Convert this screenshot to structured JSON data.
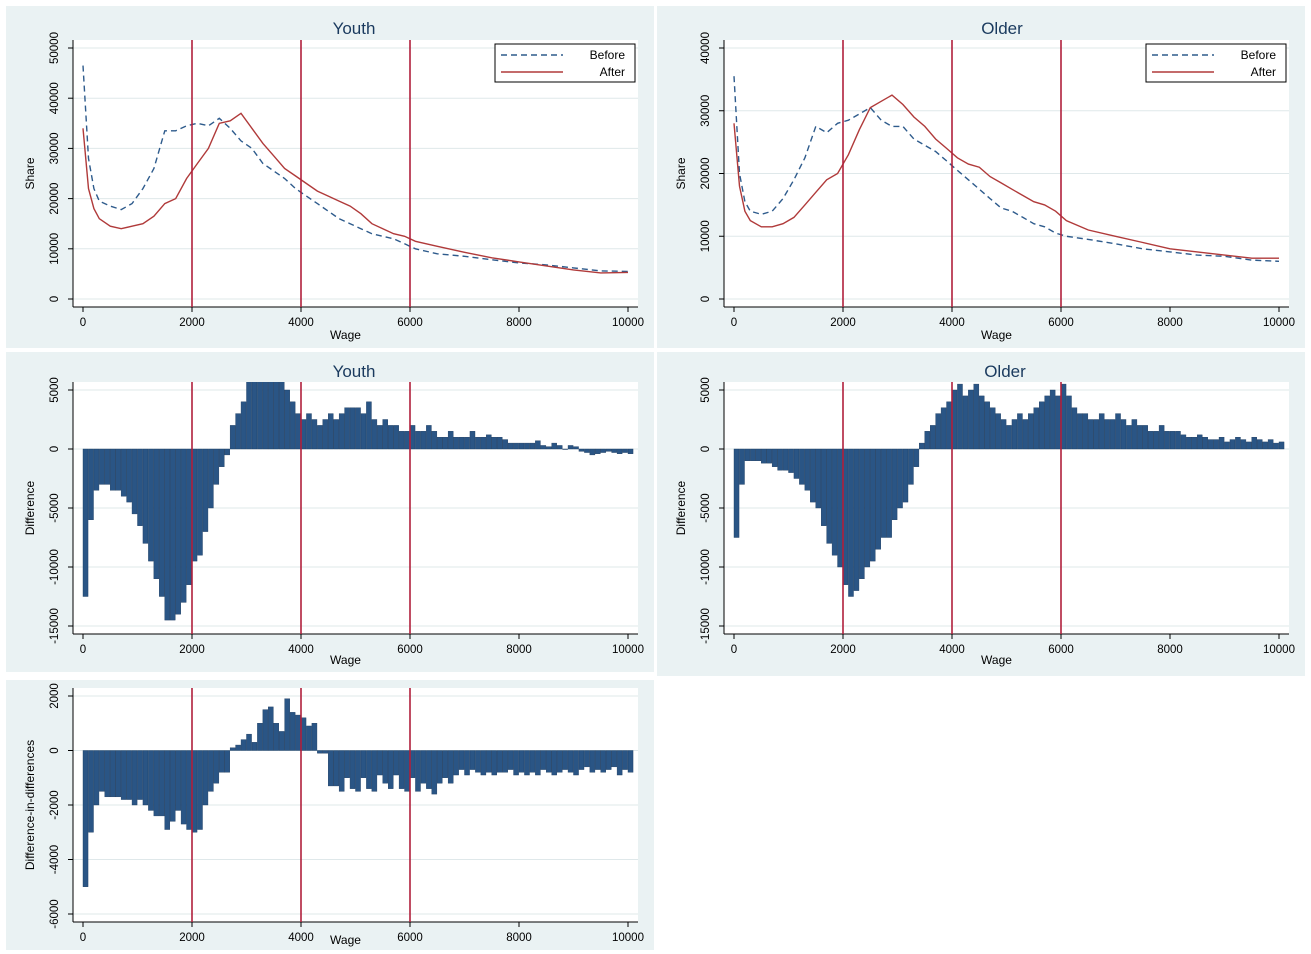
{
  "colors": {
    "panel_bg": "#eaf2f3",
    "plot_bg": "#ffffff",
    "grid": "#dfe8ea",
    "before": "#2e5b8c",
    "after": "#b03a3a",
    "bars": "#2a5585",
    "vline": "#b0203c",
    "title": "#1a3a5e"
  },
  "chart_data": [
    {
      "id": "youth-lines",
      "type": "line",
      "title": "Youth",
      "xlabel": "Wage",
      "ylabel": "Share",
      "xlim": [
        0,
        10000
      ],
      "ylim": [
        0,
        50000
      ],
      "xticks": [
        "0",
        "2000",
        "4000",
        "6000",
        "8000",
        "10000"
      ],
      "yticks": [
        "0",
        "10000",
        "20000",
        "30000",
        "40000",
        "50000"
      ],
      "vlines": [
        2000,
        4000,
        6000
      ],
      "legend_position": "top-right",
      "grid": true,
      "series": [
        {
          "name": "Before",
          "style": "dashed",
          "x": [
            0,
            100,
            200,
            300,
            500,
            700,
            900,
            1100,
            1300,
            1500,
            1700,
            1900,
            2100,
            2300,
            2500,
            2700,
            2900,
            3100,
            3300,
            3500,
            3700,
            3900,
            4100,
            4300,
            4500,
            4700,
            4900,
            5100,
            5300,
            5500,
            5700,
            5900,
            6100,
            6500,
            7000,
            7500,
            8000,
            8500,
            9000,
            9500,
            10000
          ],
          "y": [
            46500,
            28000,
            22000,
            19500,
            18500,
            17800,
            19000,
            22000,
            26000,
            33500,
            33500,
            34500,
            35000,
            34500,
            36000,
            34000,
            31500,
            30000,
            27000,
            25500,
            24000,
            22000,
            20500,
            19000,
            17500,
            16000,
            15000,
            14000,
            13000,
            12500,
            12000,
            11000,
            10000,
            9000,
            8500,
            7800,
            7200,
            6800,
            6200,
            5600,
            5500
          ]
        },
        {
          "name": "After",
          "style": "solid",
          "x": [
            0,
            100,
            200,
            300,
            500,
            700,
            900,
            1100,
            1300,
            1500,
            1700,
            1900,
            2100,
            2300,
            2500,
            2700,
            2900,
            3100,
            3300,
            3500,
            3700,
            3900,
            4100,
            4300,
            4500,
            4700,
            4900,
            5100,
            5300,
            5500,
            5700,
            5900,
            6100,
            6500,
            7000,
            7500,
            8000,
            8500,
            9000,
            9500,
            10000
          ],
          "y": [
            34000,
            22000,
            18000,
            16000,
            14500,
            14000,
            14500,
            15000,
            16500,
            19000,
            20000,
            24000,
            27000,
            30000,
            35000,
            35500,
            37000,
            34000,
            31000,
            28500,
            26000,
            24500,
            23000,
            21500,
            20500,
            19500,
            18500,
            17000,
            15000,
            14000,
            13000,
            12500,
            11500,
            10500,
            9300,
            8200,
            7400,
            6600,
            5800,
            5200,
            5300
          ]
        }
      ]
    },
    {
      "id": "older-lines",
      "type": "line",
      "title": "Older",
      "xlabel": "Wage",
      "ylabel": "Share",
      "xlim": [
        0,
        10000
      ],
      "ylim": [
        0,
        40000
      ],
      "xticks": [
        "0",
        "2000",
        "4000",
        "6000",
        "8000",
        "10000"
      ],
      "yticks": [
        "0",
        "10000",
        "20000",
        "30000",
        "40000"
      ],
      "vlines": [
        2000,
        4000,
        6000
      ],
      "legend_position": "top-right",
      "grid": true,
      "series": [
        {
          "name": "Before",
          "style": "dashed",
          "x": [
            0,
            100,
            200,
            300,
            500,
            700,
            900,
            1100,
            1300,
            1500,
            1700,
            1900,
            2100,
            2300,
            2500,
            2700,
            2900,
            3100,
            3300,
            3500,
            3700,
            3900,
            4100,
            4300,
            4500,
            4700,
            4900,
            5100,
            5300,
            5500,
            5700,
            5900,
            6100,
            6500,
            7000,
            7500,
            8000,
            8500,
            9000,
            9500,
            10000
          ],
          "y": [
            35500,
            20000,
            15500,
            14000,
            13500,
            14000,
            16000,
            19000,
            22500,
            27500,
            26500,
            28000,
            28500,
            29500,
            30500,
            28500,
            27500,
            27500,
            25500,
            24500,
            23500,
            22000,
            20500,
            19000,
            17500,
            16000,
            14500,
            14000,
            13000,
            12000,
            11500,
            10500,
            10000,
            9500,
            8800,
            8000,
            7500,
            7000,
            6800,
            6200,
            6000
          ]
        },
        {
          "name": "After",
          "style": "solid",
          "x": [
            0,
            100,
            200,
            300,
            500,
            700,
            900,
            1100,
            1300,
            1500,
            1700,
            1900,
            2100,
            2300,
            2500,
            2700,
            2900,
            3100,
            3300,
            3500,
            3700,
            3900,
            4100,
            4300,
            4500,
            4700,
            4900,
            5100,
            5300,
            5500,
            5700,
            5900,
            6100,
            6500,
            7000,
            7500,
            8000,
            8500,
            9000,
            9500,
            10000
          ],
          "y": [
            28000,
            18000,
            14000,
            12500,
            11500,
            11500,
            12000,
            13000,
            15000,
            17000,
            19000,
            20000,
            23000,
            27000,
            30500,
            31500,
            32500,
            31000,
            29000,
            27500,
            25500,
            24000,
            22500,
            21500,
            21000,
            19500,
            18500,
            17500,
            16500,
            15500,
            15000,
            14000,
            12500,
            11000,
            10000,
            9000,
            8000,
            7500,
            7000,
            6500,
            6500
          ]
        }
      ]
    },
    {
      "id": "youth-diff",
      "type": "bar",
      "title": "Youth",
      "xlabel": "Wage",
      "ylabel": "Difference",
      "xlim": [
        0,
        10000
      ],
      "ylim": [
        -15000,
        5000
      ],
      "xticks": [
        "0",
        "2000",
        "4000",
        "6000",
        "8000",
        "10000"
      ],
      "yticks": [
        "-15000",
        "-10000",
        "-5000",
        "0",
        "5000"
      ],
      "vlines": [
        2000,
        4000,
        6000
      ],
      "grid": true,
      "bin_start": 0,
      "bin_width": 100,
      "values": [
        -12500,
        -6000,
        -3500,
        -3000,
        -3000,
        -3500,
        -3500,
        -4000,
        -4500,
        -5500,
        -6500,
        -8000,
        -9500,
        -11000,
        -12500,
        -14500,
        -14500,
        -14000,
        -13000,
        -11500,
        -9500,
        -9000,
        -7000,
        -5000,
        -3000,
        -1500,
        -500,
        2000,
        3000,
        4000,
        6000,
        6000,
        6000,
        6500,
        6500,
        6000,
        6500,
        5000,
        4000,
        3000,
        2500,
        3000,
        2500,
        2000,
        2500,
        3000,
        2500,
        3000,
        3500,
        3500,
        3500,
        3000,
        4000,
        2500,
        2000,
        2500,
        2000,
        2000,
        1500,
        1500,
        2000,
        1500,
        1500,
        2000,
        1500,
        1000,
        1000,
        1500,
        1000,
        1000,
        1000,
        1500,
        1000,
        1000,
        1200,
        1000,
        1000,
        800,
        500,
        500,
        500,
        500,
        500,
        700,
        300,
        200,
        500,
        300,
        0,
        300,
        200,
        -200,
        -300,
        -500,
        -400,
        -300,
        -200,
        -300,
        -400,
        -300,
        -400,
        -300,
        -200,
        -300,
        -400,
        -300,
        -200,
        -200,
        -100,
        -300,
        -200,
        -200,
        -200,
        -200,
        -100,
        -200,
        -300,
        -200,
        -200,
        -100,
        -100,
        -200,
        -300,
        -200,
        -100,
        -200,
        -300,
        -200,
        -100,
        -200,
        -200,
        -200,
        -200,
        -300,
        -200,
        -200,
        -100,
        -100,
        -300,
        -200,
        -100,
        -200,
        -300,
        -200,
        -200,
        -300,
        -200,
        -100,
        -200,
        -300,
        -200,
        -300,
        -200,
        -200,
        -300,
        -400,
        -300,
        -200,
        -300,
        -200,
        -300,
        -400,
        -300,
        -200,
        -300,
        -400,
        -300,
        -200,
        -200,
        -300,
        -200,
        -300,
        -200,
        -200,
        -100,
        -200,
        -300,
        -200,
        -200,
        -100,
        -200,
        -300,
        -200,
        700,
        -500
      ]
    },
    {
      "id": "older-diff",
      "type": "bar",
      "title": "Older",
      "xlabel": "Wage",
      "ylabel": "Difference",
      "xlim": [
        0,
        10000
      ],
      "ylim": [
        -15000,
        5000
      ],
      "xticks": [
        "0",
        "2000",
        "4000",
        "6000",
        "8000",
        "10000"
      ],
      "yticks": [
        "-15000",
        "-10000",
        "-5000",
        "0",
        "5000"
      ],
      "vlines": [
        2000,
        4000,
        6000
      ],
      "grid": true,
      "bin_start": 0,
      "bin_width": 100,
      "values": [
        -7500,
        -3000,
        -1000,
        -1000,
        -1000,
        -1200,
        -1200,
        -1500,
        -1800,
        -1800,
        -2000,
        -2500,
        -3000,
        -3500,
        -4500,
        -5000,
        -6500,
        -8000,
        -9000,
        -10000,
        -11500,
        -12500,
        -12000,
        -11000,
        -10000,
        -9500,
        -8500,
        -7500,
        -7500,
        -6000,
        -5000,
        -4500,
        -3000,
        -1500,
        500,
        1500,
        2000,
        3000,
        3500,
        4000,
        5000,
        5500,
        4500,
        5000,
        5500,
        4500,
        4000,
        3500,
        3000,
        2500,
        2000,
        2500,
        3000,
        2500,
        3000,
        3500,
        4000,
        4500,
        5000,
        4500,
        5500,
        4500,
        3500,
        3000,
        3000,
        2500,
        2500,
        3000,
        2500,
        2500,
        3000,
        2500,
        2000,
        2500,
        2000,
        2000,
        1500,
        1500,
        2000,
        1500,
        1500,
        1500,
        1200,
        1000,
        1000,
        1200,
        1000,
        800,
        800,
        1000,
        600,
        800,
        1000,
        800,
        600,
        1000,
        800,
        600,
        800,
        500,
        600,
        500,
        800,
        600,
        500,
        400,
        500,
        600,
        800,
        600,
        500,
        400,
        600,
        500,
        400,
        500,
        600,
        400,
        500,
        600,
        400,
        500,
        400,
        500,
        600,
        400,
        500,
        600,
        800,
        600,
        800,
        600,
        500,
        400,
        500,
        400,
        500,
        400,
        600,
        500,
        400,
        500,
        400,
        300,
        500,
        400,
        300,
        400,
        500,
        400,
        600,
        500,
        400,
        500,
        600,
        500,
        700,
        600,
        500,
        800,
        700,
        800,
        1000,
        800,
        600,
        1500,
        800,
        -400
      ]
    },
    {
      "id": "diff-in-diff",
      "type": "bar",
      "title": "",
      "xlabel": "Wage",
      "ylabel": "Difference-in-differences",
      "xlim": [
        0,
        10000
      ],
      "ylim": [
        -6000,
        2000
      ],
      "xticks": [
        "0",
        "2000",
        "4000",
        "6000",
        "8000",
        "10000"
      ],
      "yticks": [
        "-6000",
        "-4000",
        "-2000",
        "0",
        "2000"
      ],
      "vlines": [
        2000,
        4000,
        6000
      ],
      "grid": true,
      "bin_start": 0,
      "bin_width": 100,
      "values": [
        -5000,
        -3000,
        -2000,
        -1500,
        -1700,
        -1700,
        -1700,
        -1800,
        -1800,
        -2000,
        -1800,
        -2000,
        -2200,
        -2400,
        -2400,
        -2900,
        -2600,
        -2200,
        -2700,
        -2900,
        -3000,
        -2900,
        -2000,
        -1500,
        -1200,
        -800,
        -800,
        100,
        200,
        400,
        600,
        300,
        1000,
        1500,
        1600,
        1000,
        700,
        1900,
        1400,
        1300,
        1200,
        900,
        1000,
        -100,
        -100,
        -1300,
        -1300,
        -1500,
        -1000,
        -1400,
        -1500,
        -1000,
        -1400,
        -1500,
        -900,
        -1200,
        -1400,
        -900,
        -1400,
        -1500,
        -1000,
        -1500,
        -1200,
        -1400,
        -1600,
        -1200,
        -1000,
        -1200,
        -900,
        -700,
        -900,
        -700,
        -800,
        -900,
        -800,
        -900,
        -800,
        -800,
        -700,
        -900,
        -800,
        -900,
        -800,
        -900,
        -700,
        -800,
        -900,
        -800,
        -700,
        -800,
        -900,
        -700,
        -600,
        -800,
        -700,
        -800,
        -700,
        -600,
        -900,
        -700,
        -800,
        -700,
        -600,
        -500,
        -700,
        -600,
        -800,
        -600,
        -500,
        -700,
        -1200,
        -600,
        -500,
        -700,
        -600,
        -400,
        -800,
        -600,
        -500,
        -400
      ]
    }
  ]
}
